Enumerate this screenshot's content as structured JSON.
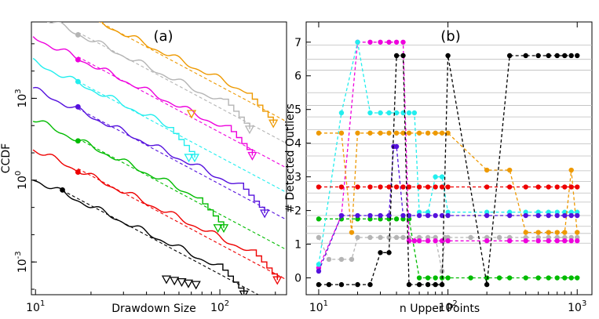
{
  "chart_data": [
    {
      "type": "line",
      "panel_label": "(a)",
      "xlabel": "Drawdown Size",
      "ylabel": "CCDF",
      "xscale": "log",
      "yscale": "log",
      "xlim": [
        9.5,
        230
      ],
      "ylim_exp": [
        -4.2,
        5.8
      ],
      "x_ticks": [
        {
          "value": 10,
          "base": "10",
          "exp": "1"
        },
        {
          "value": 100,
          "base": "10",
          "exp": "2"
        }
      ],
      "y_ticks": [
        {
          "exp_value": -3,
          "base": "10",
          "exp": "-3"
        },
        {
          "exp_value": 0,
          "base": "10",
          "exp": "0"
        },
        {
          "exp_value": 3,
          "base": "10",
          "exp": "3"
        }
      ],
      "series": [
        {
          "name": "black",
          "color": "#000000",
          "offset": 0.0,
          "xmin": 9.7,
          "xmax": 135,
          "marker_x": 14
        },
        {
          "name": "red",
          "color": "#ee0000",
          "offset": 1.1,
          "xmin": 9.7,
          "xmax": 205,
          "marker_x": 17
        },
        {
          "name": "green",
          "color": "#00bb00",
          "offset": 2.2,
          "xmin": 9.7,
          "xmax": 105,
          "marker_x": 17
        },
        {
          "name": "purple",
          "color": "#5511dd",
          "offset": 3.3,
          "xmin": 9.7,
          "xmax": 175,
          "marker_x": 17
        },
        {
          "name": "cyan",
          "color": "#22eeee",
          "offset": 4.3,
          "xmin": 9.7,
          "xmax": 73,
          "marker_x": 17
        },
        {
          "name": "magenta",
          "color": "#ee00dd",
          "offset": 5.2,
          "xmin": 9.7,
          "xmax": 150,
          "marker_x": 17
        },
        {
          "name": "gray",
          "color": "#b4b4b4",
          "offset": 6.1,
          "xmin": 9.7,
          "xmax": 145,
          "marker_x": 17
        },
        {
          "name": "orange",
          "color": "#ee9900",
          "offset": 6.9,
          "xmin": 14,
          "xmax": 195,
          "marker_x": 16
        }
      ]
    },
    {
      "type": "line",
      "panel_label": "(b)",
      "xlabel": "n Upper Points",
      "ylabel": "# Detected Outliers",
      "xscale": "log",
      "xlim": [
        8,
        1300
      ],
      "ylim": [
        -0.5,
        7.6
      ],
      "y_ticks": [
        0,
        1,
        2,
        3,
        4,
        5,
        6,
        7
      ],
      "x_ticks": [
        {
          "value": 10,
          "base": "10",
          "exp": "1"
        },
        {
          "value": 100,
          "base": "10",
          "exp": "2"
        },
        {
          "value": 1000,
          "base": "10",
          "exp": "3"
        }
      ],
      "gridlines_y": [
        1.03,
        1.32,
        1.53,
        1.85,
        2.25,
        2.52,
        2.86,
        3.18,
        3.62,
        3.98,
        4.4,
        4.78,
        5.12,
        5.5,
        6.17,
        6.49,
        6.91
      ],
      "series": [
        {
          "name": "gray",
          "color": "#b4b4b4",
          "x": [
            10,
            12,
            15,
            18,
            20,
            25,
            30,
            35,
            40,
            45,
            50,
            60,
            70,
            80,
            90,
            95,
            100,
            150,
            200,
            250,
            300,
            400,
            500,
            600,
            700,
            800,
            900,
            1000
          ],
          "y": [
            1.2,
            0.55,
            0.55,
            0.55,
            1.2,
            1.2,
            1.2,
            1.2,
            1.2,
            1.2,
            1.2,
            1.2,
            1.2,
            1.2,
            0.2,
            1.2,
            1.2,
            1.2,
            1.2,
            1.2,
            1.2,
            1.2,
            1.2,
            1.2,
            1.2,
            1.2,
            1.2,
            1.2
          ]
        },
        {
          "name": "green",
          "color": "#00bb00",
          "x": [
            10,
            15,
            20,
            25,
            30,
            35,
            40,
            45,
            50,
            60,
            70,
            80,
            90,
            100,
            150,
            200,
            250,
            300,
            400,
            500,
            600,
            700,
            800,
            900,
            1000
          ],
          "y": [
            1.75,
            1.75,
            1.75,
            1.75,
            1.75,
            1.75,
            1.75,
            1.75,
            1.75,
            0.0,
            0.0,
            0.0,
            0.0,
            0.0,
            0.0,
            0.0,
            0.0,
            0.0,
            0.0,
            0.0,
            0.0,
            0.0,
            0.0,
            0.0,
            0.0
          ]
        },
        {
          "name": "magenta",
          "color": "#ee00dd",
          "x": [
            10,
            15,
            20,
            25,
            30,
            35,
            40,
            45,
            50,
            55,
            60,
            70,
            80,
            90,
            100,
            200,
            300,
            400,
            500,
            600,
            700,
            800,
            900,
            1000
          ],
          "y": [
            0.3,
            1.85,
            7.0,
            7.0,
            7.0,
            7.0,
            7.0,
            7.0,
            1.1,
            1.1,
            1.1,
            1.1,
            1.1,
            1.1,
            1.1,
            1.1,
            1.1,
            1.1,
            1.1,
            1.1,
            1.1,
            1.1,
            1.1,
            1.1
          ]
        },
        {
          "name": "cyan",
          "color": "#22eeee",
          "x": [
            10,
            15,
            20,
            25,
            30,
            35,
            40,
            45,
            50,
            55,
            60,
            70,
            80,
            90,
            100,
            200,
            300,
            400,
            500,
            600,
            700,
            800,
            900,
            1000
          ],
          "y": [
            0.4,
            4.9,
            7.0,
            4.9,
            4.9,
            4.9,
            4.9,
            4.9,
            4.9,
            4.9,
            1.95,
            1.95,
            3.0,
            3.0,
            1.95,
            1.95,
            1.95,
            1.95,
            1.95,
            1.95,
            1.95,
            1.95,
            1.95,
            1.95
          ]
        },
        {
          "name": "orange",
          "color": "#ee9900",
          "x": [
            10,
            15,
            18,
            20,
            25,
            30,
            35,
            40,
            45,
            50,
            60,
            70,
            80,
            90,
            100,
            200,
            300,
            400,
            500,
            600,
            700,
            800,
            900,
            1000
          ],
          "y": [
            4.3,
            4.3,
            1.35,
            4.3,
            4.3,
            4.3,
            4.3,
            4.3,
            4.3,
            4.3,
            4.3,
            4.3,
            4.3,
            4.3,
            4.3,
            3.2,
            3.2,
            1.35,
            1.35,
            1.35,
            1.35,
            1.35,
            3.2,
            1.35
          ]
        },
        {
          "name": "purple",
          "color": "#5511dd",
          "x": [
            10,
            15,
            20,
            25,
            30,
            35,
            38,
            40,
            45,
            50,
            60,
            70,
            80,
            90,
            100,
            200,
            300,
            400,
            500,
            600,
            700,
            800,
            900,
            1000
          ],
          "y": [
            0.2,
            1.85,
            1.85,
            1.85,
            1.85,
            1.85,
            3.9,
            3.9,
            1.85,
            1.85,
            1.85,
            1.85,
            1.85,
            1.85,
            1.85,
            1.85,
            1.85,
            1.85,
            1.85,
            1.85,
            1.85,
            1.85,
            1.85,
            1.85
          ]
        },
        {
          "name": "red",
          "color": "#ee0000",
          "x": [
            10,
            15,
            20,
            25,
            30,
            35,
            40,
            45,
            50,
            60,
            70,
            80,
            90,
            100,
            200,
            300,
            400,
            500,
            600,
            700,
            800,
            900,
            1000
          ],
          "y": [
            2.7,
            2.7,
            2.7,
            2.7,
            2.7,
            2.7,
            2.7,
            2.7,
            2.7,
            2.7,
            2.7,
            2.7,
            2.7,
            2.7,
            2.7,
            2.7,
            2.7,
            2.7,
            2.7,
            2.7,
            2.7,
            2.7,
            2.7
          ]
        },
        {
          "name": "black",
          "color": "#000000",
          "x": [
            10,
            12,
            15,
            20,
            25,
            30,
            35,
            40,
            45,
            50,
            60,
            70,
            80,
            90,
            100,
            200,
            300,
            400,
            500,
            600,
            700,
            800,
            900,
            1000
          ],
          "y": [
            -0.2,
            -0.2,
            -0.2,
            -0.2,
            -0.2,
            0.75,
            0.75,
            6.6,
            6.6,
            -0.2,
            -0.2,
            -0.2,
            -0.2,
            -0.2,
            6.6,
            -0.2,
            6.6,
            6.6,
            6.6,
            6.6,
            6.6,
            6.6,
            6.6,
            6.6
          ]
        }
      ]
    }
  ]
}
